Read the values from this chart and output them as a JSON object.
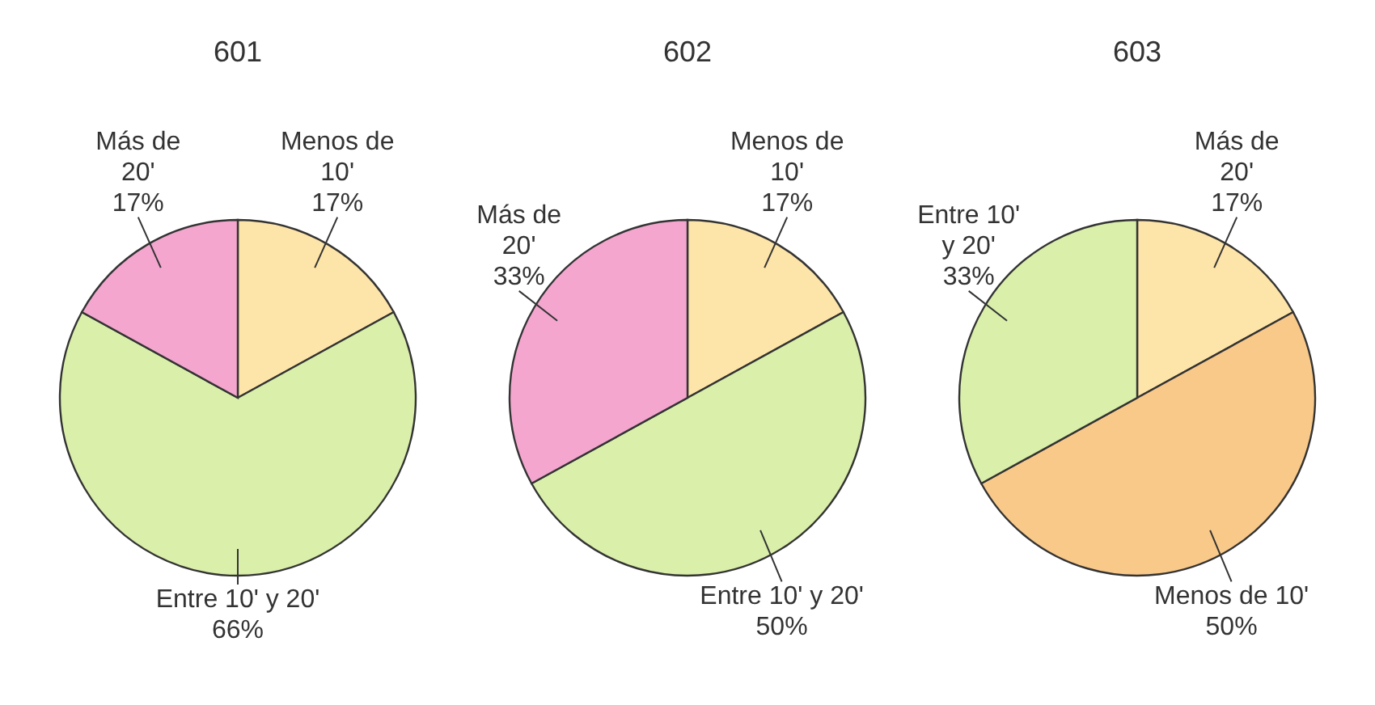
{
  "chart_data": [
    {
      "type": "pie",
      "title": "601",
      "categories": [
        "Menos de 10'",
        "Entre 10' y 20'",
        "Más de 20'"
      ],
      "values": [
        17,
        66,
        17
      ],
      "value_labels": [
        "17%",
        "66%",
        "17%"
      ],
      "colors": [
        "#fde4a8",
        "#d9efaa",
        "#f4a6cf"
      ]
    },
    {
      "type": "pie",
      "title": "602",
      "categories": [
        "Menos de 10'",
        "Entre 10' y 20'",
        "Más de 20'"
      ],
      "values": [
        17,
        50,
        33
      ],
      "value_labels": [
        "17%",
        "50%",
        "33%"
      ],
      "colors": [
        "#fde4a8",
        "#d9efaa",
        "#f4a6cf"
      ]
    },
    {
      "type": "pie",
      "title": "603",
      "categories": [
        "Más de 20'",
        "Menos de 10'",
        "Entre 10' y 20'"
      ],
      "values": [
        17,
        50,
        33
      ],
      "value_labels": [
        "17%",
        "50%",
        "33%"
      ],
      "colors": [
        "#fde4a8",
        "#f9c98a",
        "#d9efaa"
      ]
    }
  ]
}
